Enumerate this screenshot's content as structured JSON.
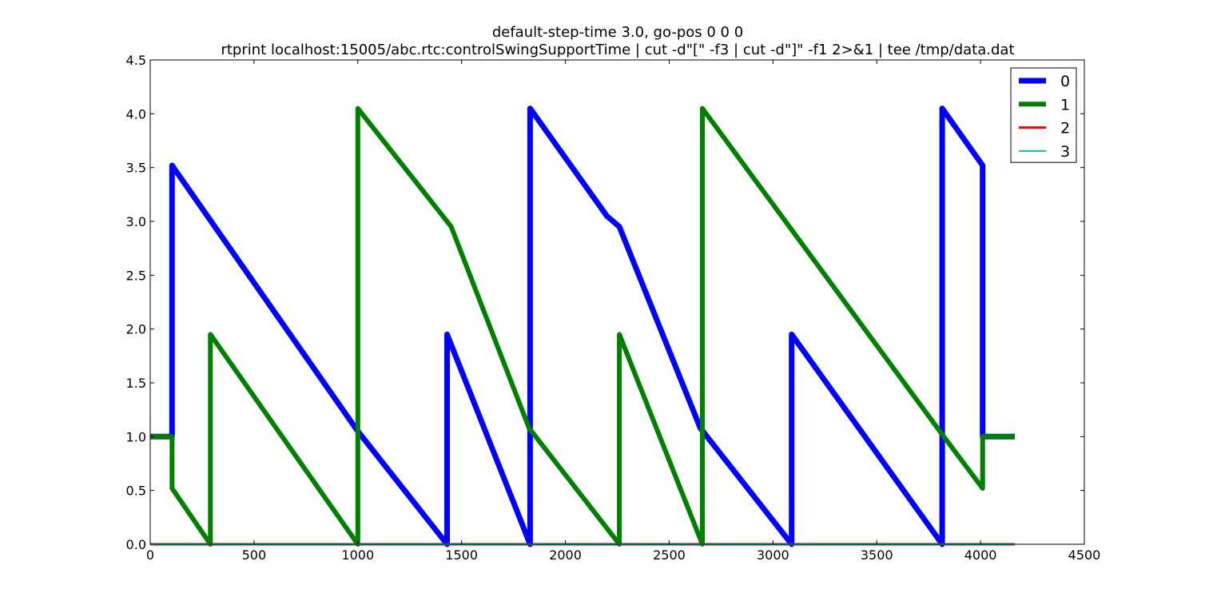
{
  "chart_data": {
    "type": "line",
    "title": "default-step-time 3.0, go-pos 0 0 0",
    "subtitle": "rtprint localhost:15005/abc.rtc:controlSwingSupportTime | cut -d\"[\" -f3 | cut -d\"]\" -f1 2>&1 | tee /tmp/data.dat",
    "xlabel": "",
    "ylabel": "",
    "xlim": [
      0,
      4500
    ],
    "ylim": [
      0,
      4.5
    ],
    "x_ticks": [
      0,
      500,
      1000,
      1500,
      2000,
      2500,
      3000,
      3500,
      4000,
      4500
    ],
    "x_tick_labels": [
      "0",
      "500",
      "1000",
      "1500",
      "2000",
      "2500",
      "3000",
      "3500",
      "4000",
      "4500"
    ],
    "y_ticks": [
      0,
      0.5,
      1.0,
      1.5,
      2.0,
      2.5,
      3.0,
      3.5,
      4.0,
      4.5
    ],
    "y_tick_labels": [
      "0.0",
      "0.5",
      "1.0",
      "1.5",
      "2.0",
      "2.5",
      "3.0",
      "3.5",
      "4.0",
      "4.5"
    ],
    "grid": false,
    "legend_position": "top-right",
    "series": [
      {
        "name": "0",
        "color": "#0000ff",
        "points": [
          [
            0,
            1.0
          ],
          [
            105,
            1.0
          ],
          [
            105,
            3.52
          ],
          [
            1000,
            1.05
          ],
          [
            1430,
            0.0
          ],
          [
            1430,
            1.95
          ],
          [
            1830,
            0.0
          ],
          [
            1830,
            4.05
          ],
          [
            2200,
            3.05
          ],
          [
            2260,
            2.95
          ],
          [
            2650,
            1.08
          ],
          [
            3090,
            0.0
          ],
          [
            3090,
            1.95
          ],
          [
            3815,
            0.0
          ],
          [
            3815,
            4.05
          ],
          [
            4010,
            3.52
          ],
          [
            4010,
            1.0
          ],
          [
            4165,
            1.0
          ]
        ]
      },
      {
        "name": "1",
        "color": "#008000",
        "points": [
          [
            0,
            1.0
          ],
          [
            105,
            1.0
          ],
          [
            105,
            0.52
          ],
          [
            290,
            0.0
          ],
          [
            290,
            1.95
          ],
          [
            1000,
            0.0
          ],
          [
            1000,
            4.05
          ],
          [
            1450,
            2.95
          ],
          [
            1825,
            1.08
          ],
          [
            2260,
            0.0
          ],
          [
            2260,
            1.95
          ],
          [
            2660,
            0.0
          ],
          [
            2660,
            4.05
          ],
          [
            3815,
            1.02
          ],
          [
            4010,
            0.52
          ],
          [
            4010,
            1.0
          ],
          [
            4165,
            1.0
          ]
        ]
      },
      {
        "name": "2",
        "color": "#ff0000",
        "points": [
          [
            0,
            0.0
          ],
          [
            4165,
            0.0
          ]
        ]
      },
      {
        "name": "3",
        "color": "#00bfbf",
        "points": [
          [
            0,
            0.0
          ],
          [
            4165,
            0.0
          ]
        ]
      }
    ]
  }
}
